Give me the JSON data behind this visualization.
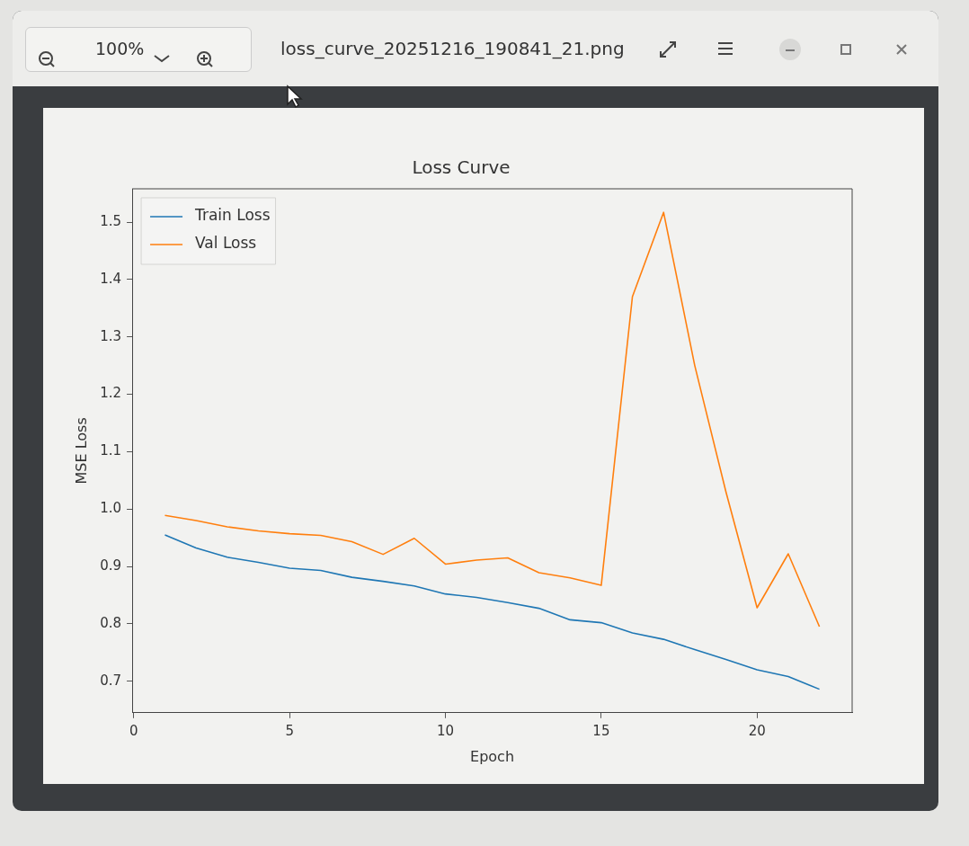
{
  "chart_data": {
    "type": "line",
    "title": "Loss Curve",
    "xlabel": "Epoch",
    "ylabel": "MSE Loss",
    "x": [
      1,
      2,
      3,
      4,
      5,
      6,
      7,
      8,
      9,
      10,
      11,
      12,
      13,
      14,
      15,
      16,
      17,
      18,
      19,
      20,
      21,
      22
    ],
    "series": [
      {
        "name": "Train Loss",
        "color": "#1f77b4",
        "values": [
          0.955,
          0.932,
          0.916,
          0.907,
          0.897,
          0.893,
          0.881,
          0.874,
          0.866,
          0.852,
          0.846,
          0.837,
          0.827,
          0.807,
          0.802,
          0.784,
          0.773,
          0.755,
          0.738,
          0.72,
          0.708,
          0.686
        ]
      },
      {
        "name": "Val Loss",
        "color": "#ff7f0e",
        "values": [
          0.989,
          0.98,
          0.969,
          0.962,
          0.957,
          0.954,
          0.943,
          0.921,
          0.949,
          0.904,
          0.911,
          0.915,
          0.889,
          0.88,
          0.867,
          1.37,
          1.517,
          1.25,
          1.03,
          0.828,
          0.922,
          0.795
        ]
      }
    ],
    "xlim": [
      -0.05,
      23.05
    ],
    "xticks": [
      0,
      5,
      10,
      15,
      20
    ],
    "ylim": [
      0.645,
      1.558
    ],
    "yticks": [
      0.7,
      0.8,
      0.9,
      {
        "value": 1.0,
        "label": "1.0"
      },
      1.1,
      1.2,
      1.3,
      1.4,
      1.5
    ],
    "legend": "top left",
    "grid": false,
    "marker": "none",
    "line_style": "solid",
    "annotations": [
      "100%",
      "loss_curve_20251216_190841_21.png"
    ]
  }
}
